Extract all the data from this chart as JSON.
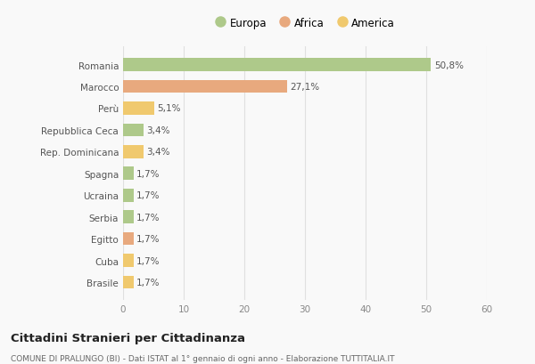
{
  "categories": [
    "Romania",
    "Marocco",
    "Perù",
    "Repubblica Ceca",
    "Rep. Dominicana",
    "Spagna",
    "Ucraina",
    "Serbia",
    "Egitto",
    "Cuba",
    "Brasile"
  ],
  "values": [
    50.8,
    27.1,
    5.1,
    3.4,
    3.4,
    1.7,
    1.7,
    1.7,
    1.7,
    1.7,
    1.7
  ],
  "labels": [
    "50,8%",
    "27,1%",
    "5,1%",
    "3,4%",
    "3,4%",
    "1,7%",
    "1,7%",
    "1,7%",
    "1,7%",
    "1,7%",
    "1,7%"
  ],
  "colors": [
    "#aec98a",
    "#e8a97e",
    "#f0c96e",
    "#aec98a",
    "#f0c96e",
    "#aec98a",
    "#aec98a",
    "#aec98a",
    "#e8a97e",
    "#f0c96e",
    "#f0c96e"
  ],
  "legend_labels": [
    "Europa",
    "Africa",
    "America"
  ],
  "legend_colors": [
    "#aec98a",
    "#e8a97e",
    "#f0c96e"
  ],
  "xlim": [
    0,
    60
  ],
  "xticks": [
    0,
    10,
    20,
    30,
    40,
    50,
    60
  ],
  "title": "Cittadini Stranieri per Cittadinanza",
  "subtitle": "COMUNE DI PRALUNGO (BI) - Dati ISTAT al 1° gennaio di ogni anno - Elaborazione TUTTITALIA.IT",
  "bg_color": "#f9f9f9",
  "grid_color": "#e0e0e0",
  "bar_height": 0.6
}
